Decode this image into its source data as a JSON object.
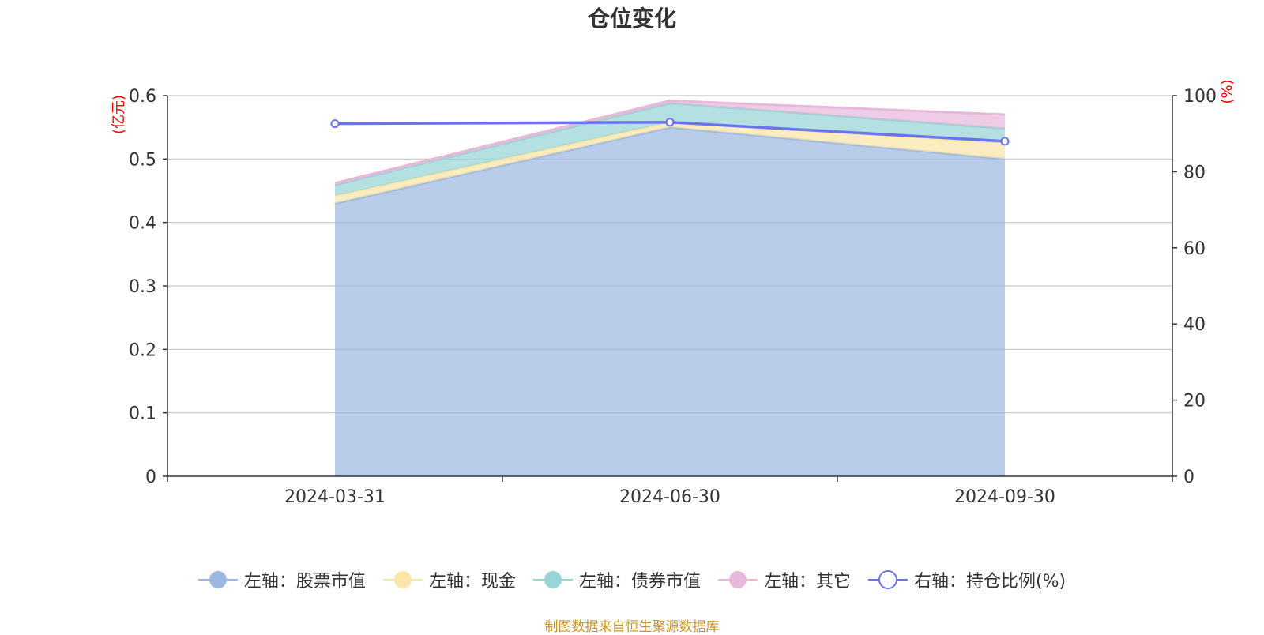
{
  "chart_data": {
    "type": "area",
    "title": "仓位变化",
    "categories": [
      "2024-03-31",
      "2024-06-30",
      "2024-09-30"
    ],
    "left_axis": {
      "unit_label": "(亿元)",
      "ylim": [
        0,
        0.6
      ],
      "ticks": [
        "0",
        "0.1",
        "0.2",
        "0.3",
        "0.4",
        "0.5",
        "0.6"
      ]
    },
    "right_axis": {
      "unit_label": "(%)",
      "ylim": [
        0,
        100
      ],
      "ticks": [
        "0",
        "20",
        "40",
        "60",
        "80",
        "100"
      ]
    },
    "stacked": true,
    "grid": true,
    "legend_position": "bottom",
    "series": [
      {
        "name": "左轴：股票市值",
        "axis": "left",
        "kind": "area",
        "color": "#9cb8e2",
        "values": [
          0.43,
          0.55,
          0.5
        ]
      },
      {
        "name": "左轴：现金",
        "axis": "left",
        "kind": "area",
        "color": "#fae6a7",
        "values": [
          0.012,
          0.008,
          0.025
        ]
      },
      {
        "name": "左轴：债券市值",
        "axis": "left",
        "kind": "area",
        "color": "#99d4d6",
        "values": [
          0.017,
          0.03,
          0.023
        ]
      },
      {
        "name": "左轴：其它",
        "axis": "left",
        "kind": "area",
        "color": "#e8b8dc",
        "values": [
          0.003,
          0.004,
          0.022
        ]
      },
      {
        "name": "右轴：持仓比例(%)",
        "axis": "right",
        "kind": "line",
        "color": "#6b74ee",
        "values": [
          92.6,
          93.0,
          88.0
        ]
      }
    ]
  },
  "source_text": "制图数据来自恒生聚源数据库"
}
